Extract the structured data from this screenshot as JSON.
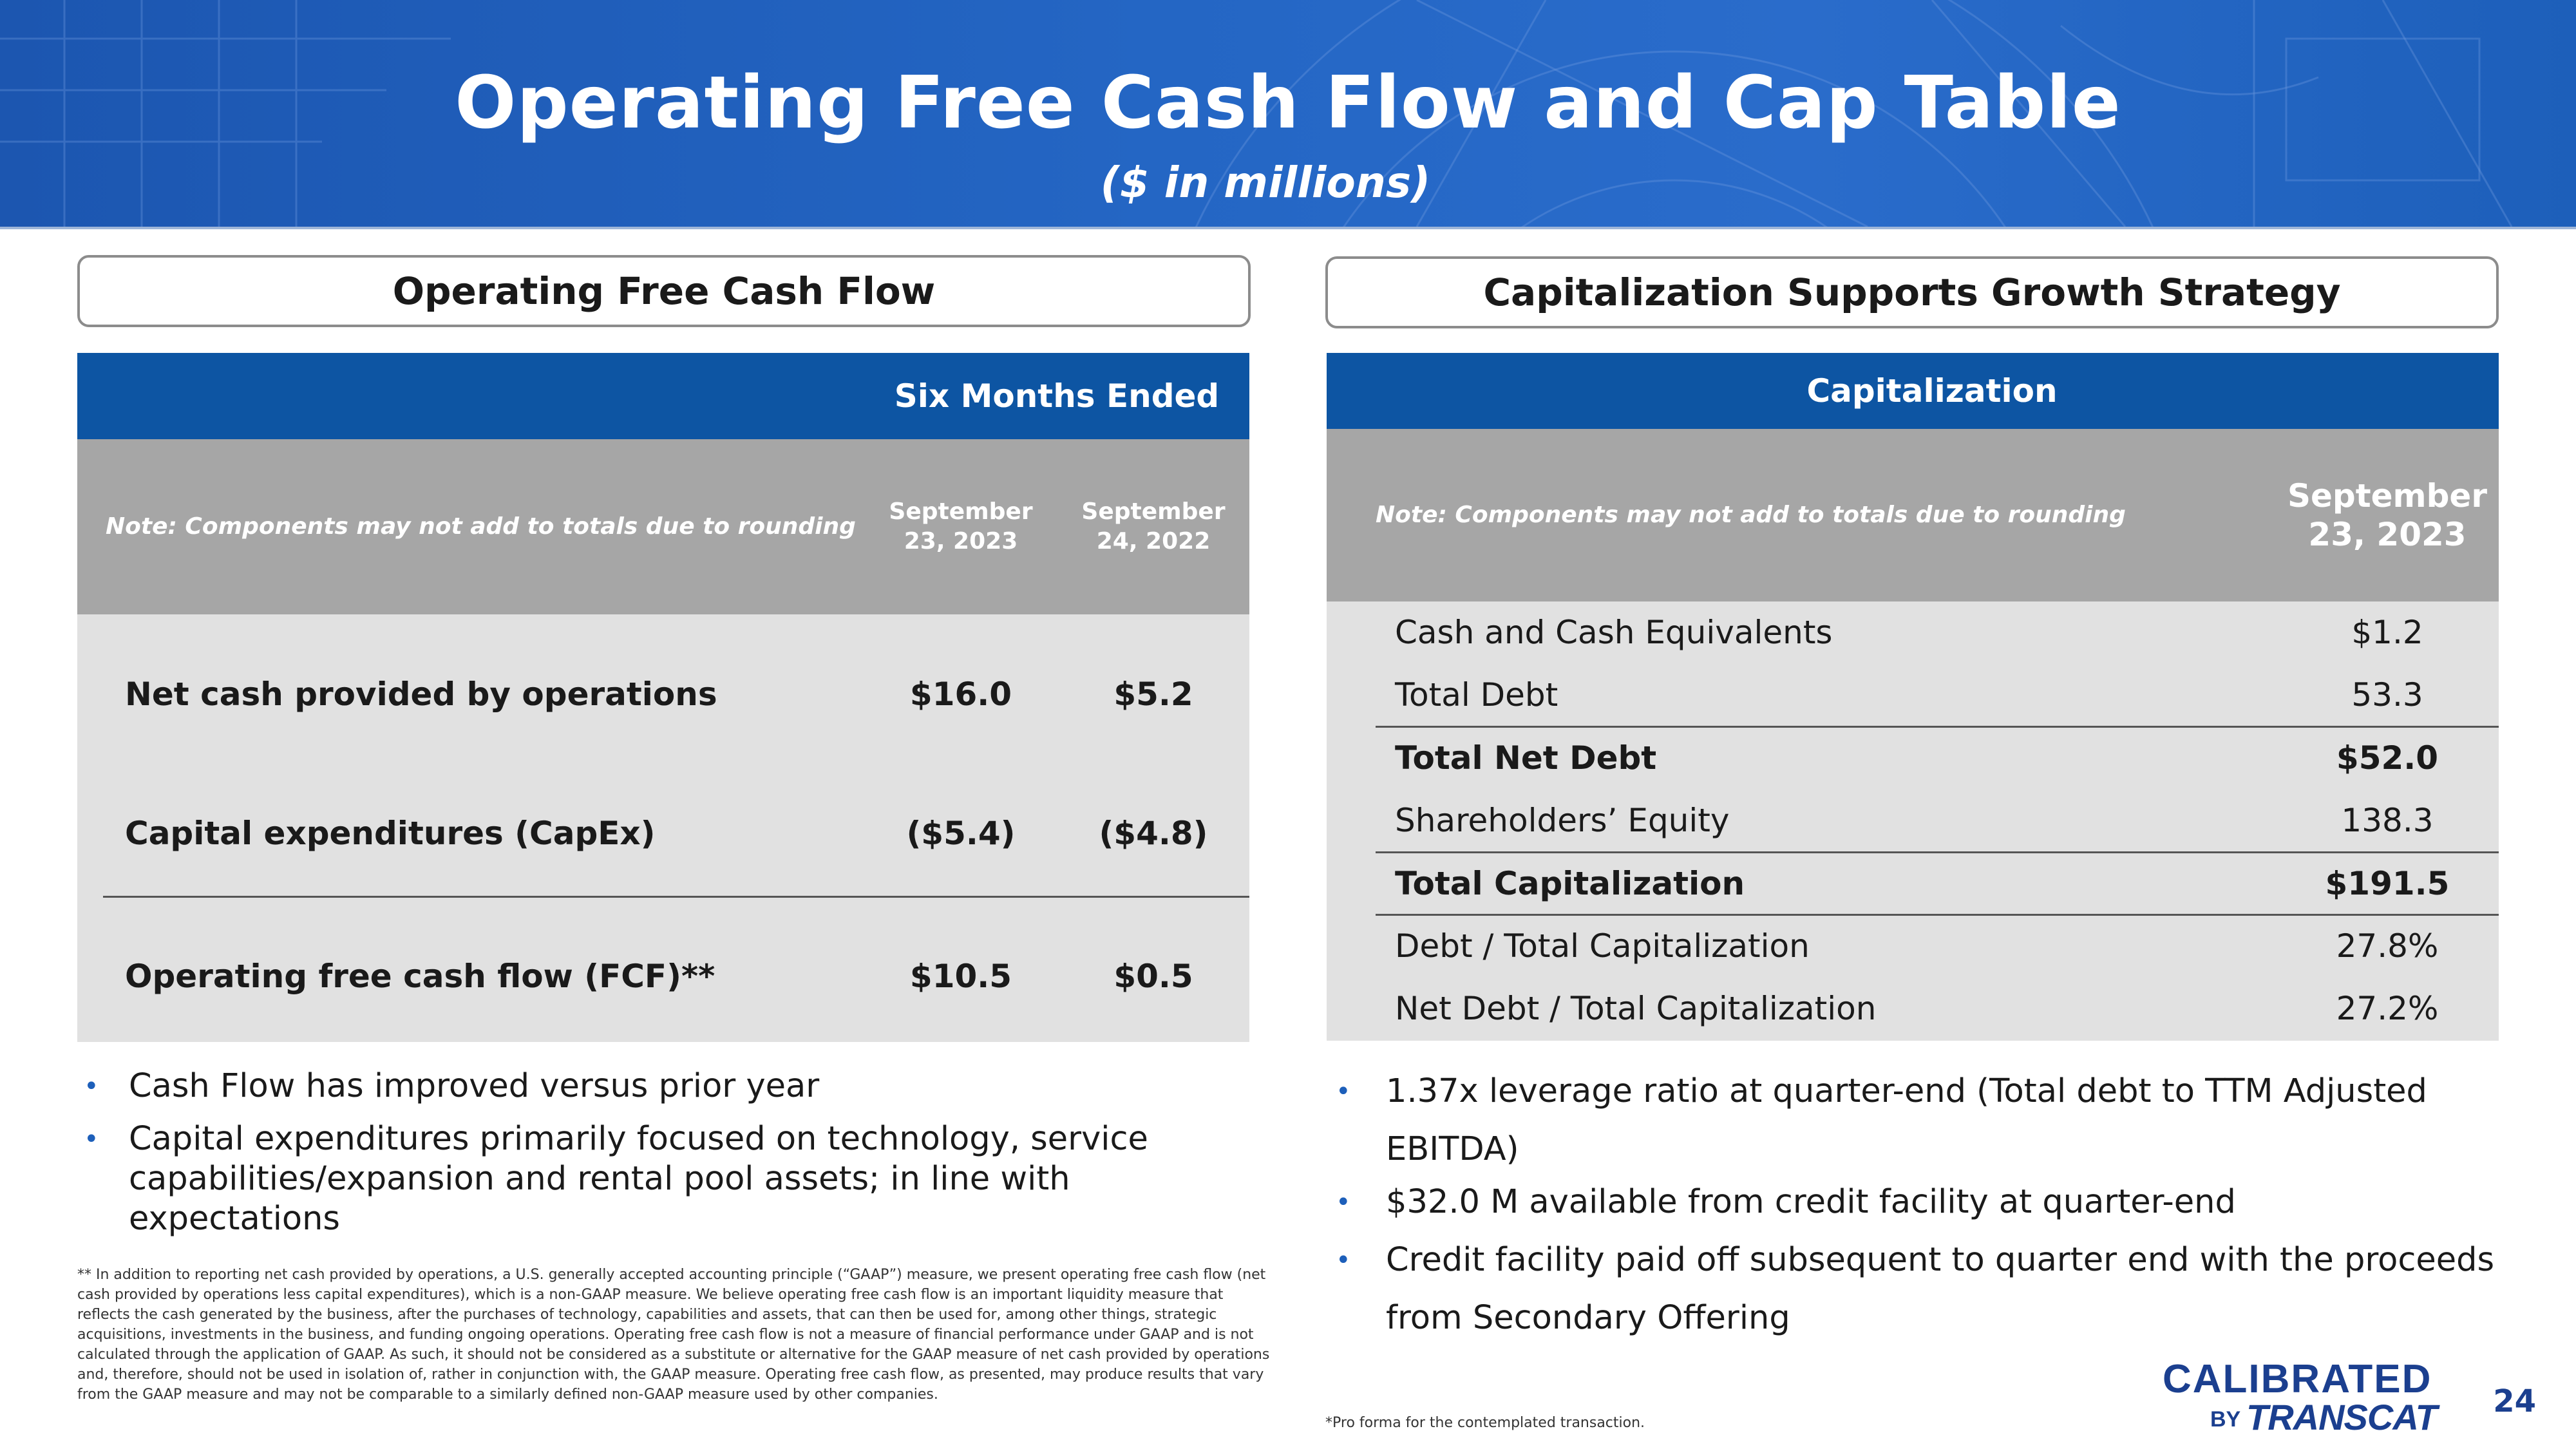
{
  "header": {
    "title": "Operating Free Cash Flow and Cap Table",
    "subtitle": "($ in millions)"
  },
  "left": {
    "section_title": "Operating Free Cash Flow",
    "table": {
      "group_header": "Six Months Ended",
      "note": "Note: Components may not add to totals due to rounding",
      "col1": "September 23, 2023",
      "col2": "September 24, 2022",
      "rows": [
        {
          "label": "Net cash provided by operations",
          "v1": "$16.0",
          "v2": "$5.2"
        },
        {
          "label": "Capital expenditures (CapEx)",
          "v1": "($5.4)",
          "v2": "($4.8)"
        },
        {
          "label": "Operating free cash flow (FCF)**",
          "v1": "$10.5",
          "v2": "$0.5"
        }
      ]
    },
    "bullets": [
      "Cash Flow has improved versus prior year",
      "Capital expenditures primarily focused on technology, service capabilities/expansion and rental pool assets; in line with expectations"
    ],
    "footnote": "** In addition to reporting net cash provided by operations, a U.S. generally accepted accounting principle (“GAAP”) measure, we present operating free cash flow (net cash provided by operations less capital expenditures), which is a non-GAAP measure. We believe operating free cash flow is an important liquidity measure that reflects the cash generated by the business, after the purchases of technology, capabilities and assets, that can then be used for, among other things, strategic acquisitions, investments in the business, and funding ongoing operations. Operating free cash flow is not a measure of financial performance under GAAP and is not calculated through the application of GAAP. As such, it should not be considered as a substitute or alternative for the GAAP measure of net cash provided by operations and, therefore, should not be used in isolation of, rather in conjunction with, the GAAP measure. Operating free cash flow, as presented, may produce results that vary from the GAAP measure and may not be comparable to a similarly defined non-GAAP measure used by other companies."
  },
  "right": {
    "section_title": "Capitalization Supports Growth Strategy",
    "table": {
      "group_header": "Capitalization",
      "note": "Note: Components may not add to totals due to rounding",
      "col1": "September 23, 2023",
      "rows": [
        {
          "label": "Cash and Cash Equivalents",
          "value": "$1.2",
          "bold": false
        },
        {
          "label": "Total Debt",
          "value": "53.3",
          "bold": false
        },
        {
          "label": "Total Net Debt",
          "value": "$52.0",
          "bold": true
        },
        {
          "label": "Shareholders’ Equity",
          "value": "138.3",
          "bold": false
        },
        {
          "label": "Total Capitalization",
          "value": "$191.5",
          "bold": true
        },
        {
          "label": "Debt / Total Capitalization",
          "value": "27.8%",
          "bold": false
        },
        {
          "label": "Net Debt / Total Capitalization",
          "value": "27.2%",
          "bold": false
        }
      ]
    },
    "bullets": [
      "1.37x leverage ratio at quarter-end (Total debt to TTM Adjusted EBITDA)",
      "$32.0 M available from credit facility at quarter-end",
      "Credit facility paid off subsequent to quarter end with the proceeds from Secondary Offering"
    ],
    "footnote": "*Pro forma for the contemplated transaction."
  },
  "logo": {
    "line1": "CALIBRATED",
    "by": "BY",
    "line2": "TRANSCAT"
  },
  "page_number": "24",
  "colors": {
    "navy": "#0d55a3",
    "header_blue": "#2466c4",
    "gray_header": "#a6a6a6",
    "row_gray": "#e1e1e1"
  }
}
